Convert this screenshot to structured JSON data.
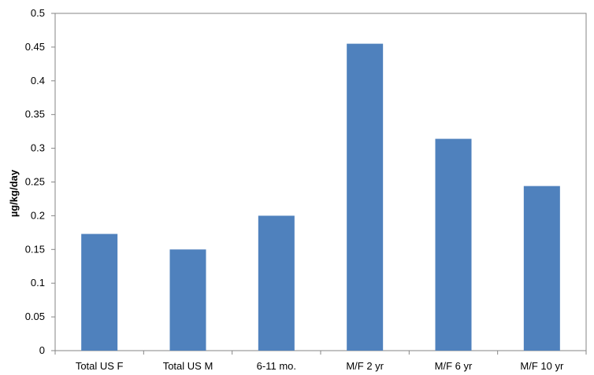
{
  "chart_data": {
    "type": "bar",
    "title": "",
    "xlabel": "",
    "ylabel": "µg/kg/day",
    "categories": [
      "Total US F",
      "Total US M",
      "6-11 mo.",
      "M/F 2 yr",
      "M/F 6 yr",
      "M/F 10 yr"
    ],
    "values": [
      0.173,
      0.15,
      0.2,
      0.455,
      0.314,
      0.244
    ],
    "ylim": [
      0,
      0.5
    ],
    "yticks": [
      "0",
      "0.05",
      "0.1",
      "0.15",
      "0.2",
      "0.25",
      "0.3",
      "0.35",
      "0.4",
      "0.45",
      "0.5"
    ],
    "grid": false,
    "legend": "none",
    "colors": {
      "bar": "#4f81bd",
      "axis": "#868686"
    }
  }
}
